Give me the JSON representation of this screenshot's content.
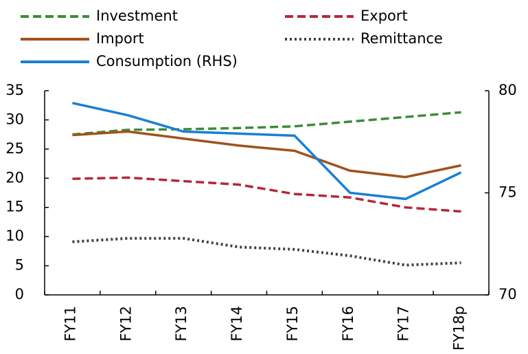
{
  "chart_data": {
    "type": "line",
    "categories": [
      "FY11",
      "FY12",
      "FY13",
      "FY14",
      "FY15",
      "FY16",
      "FY17",
      "FY18p"
    ],
    "series": [
      {
        "name": "Investment",
        "color": "#3d8b37",
        "style": "dashed",
        "values": [
          27.5,
          28.3,
          28.4,
          28.6,
          28.9,
          29.7,
          30.5,
          31.3
        ]
      },
      {
        "name": "Export",
        "color": "#b5273b",
        "style": "dashed",
        "values": [
          19.9,
          20.1,
          19.5,
          18.9,
          17.3,
          16.7,
          15.0,
          14.3
        ]
      },
      {
        "name": "Import",
        "color": "#a0521c",
        "style": "solid",
        "values": [
          27.4,
          28.0,
          26.8,
          25.6,
          24.7,
          21.3,
          20.2,
          22.2
        ]
      },
      {
        "name": "Remittance",
        "color": "#404040",
        "style": "dotted",
        "values": [
          9.1,
          9.7,
          9.7,
          8.2,
          7.8,
          6.7,
          5.1,
          5.5
        ]
      },
      {
        "name": "Consumption (RHS)",
        "color": "#1a7fd4",
        "style": "solid",
        "axis": "y2",
        "values": [
          79.4,
          78.8,
          78.0,
          77.9,
          77.8,
          75.0,
          74.7,
          76.0
        ]
      }
    ],
    "ylim": [
      0,
      35
    ],
    "yticks": [
      0,
      5,
      10,
      15,
      20,
      25,
      30,
      35
    ],
    "y2lim": [
      70,
      80
    ],
    "y2ticks": [
      70,
      75,
      80
    ],
    "legend": "top"
  }
}
